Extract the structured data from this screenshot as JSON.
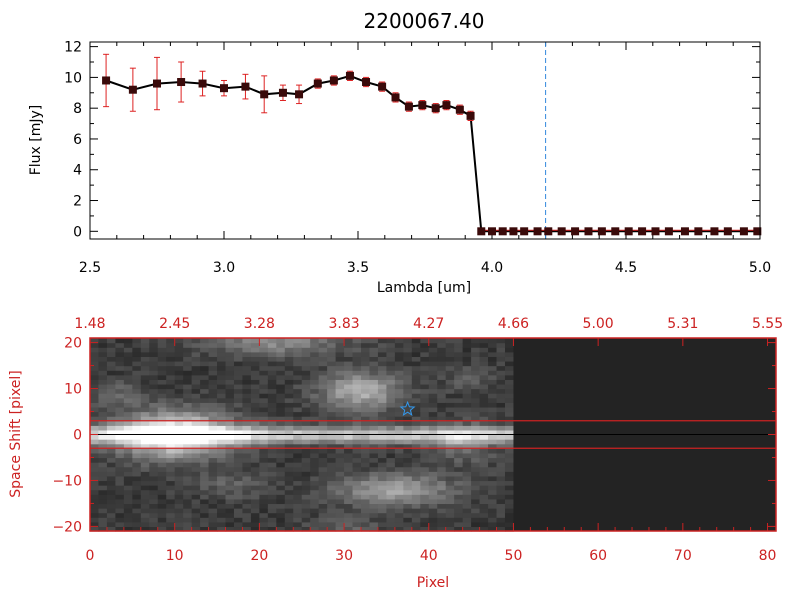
{
  "colors": {
    "axis_red": "#cc2222",
    "black": "#000000",
    "marker": "#3a0a0a",
    "error_bar": "#dd2222",
    "dashed_line": "#3388dd",
    "star": "#3399ee",
    "image_empty": "#232323"
  },
  "chart_data": [
    {
      "type": "line",
      "title": "2200067.40",
      "xlabel": "Lambda [um]",
      "ylabel": "Flux [mJy]",
      "xlim": [
        2.5,
        5.0
      ],
      "ylim": [
        -0.5,
        12.3
      ],
      "xticks": [
        2.5,
        3.0,
        3.5,
        4.0,
        4.5,
        5.0
      ],
      "xtick_labels": [
        "2.5",
        "3.0",
        "3.5",
        "4.0",
        "4.5",
        "5.0"
      ],
      "yticks": [
        0,
        2,
        4,
        6,
        8,
        10,
        12
      ],
      "ytick_labels": [
        "0",
        "2",
        "4",
        "6",
        "8",
        "10",
        "12"
      ],
      "vline_dashed": 4.2,
      "series": [
        {
          "name": "flux",
          "x": [
            2.56,
            2.66,
            2.75,
            2.84,
            2.92,
            3.0,
            3.08,
            3.15,
            3.22,
            3.28,
            3.35,
            3.41,
            3.47,
            3.53,
            3.59,
            3.64,
            3.69,
            3.74,
            3.79,
            3.83,
            3.88,
            3.92,
            3.96,
            4.0,
            4.04,
            4.08,
            4.12,
            4.17,
            4.21,
            4.26,
            4.31,
            4.36,
            4.41,
            4.46,
            4.51,
            4.56,
            4.61,
            4.66,
            4.72,
            4.77,
            4.83,
            4.88,
            4.94,
            4.99
          ],
          "y": [
            9.8,
            9.2,
            9.6,
            9.7,
            9.6,
            9.3,
            9.4,
            8.9,
            9.0,
            8.9,
            9.6,
            9.8,
            10.1,
            9.7,
            9.4,
            8.7,
            8.1,
            8.2,
            8.0,
            8.2,
            7.9,
            7.5,
            0,
            0,
            0,
            0,
            0,
            0,
            0,
            0,
            0,
            0,
            0,
            0,
            0,
            0,
            0,
            0,
            0,
            0,
            0,
            0,
            0,
            0
          ],
          "yerr": [
            1.7,
            1.4,
            1.7,
            1.3,
            0.8,
            0.5,
            0.8,
            1.2,
            0.5,
            0.6,
            0.3,
            0.3,
            0.3,
            0.3,
            0.3,
            0.3,
            0.3,
            0.3,
            0.3,
            0.3,
            0.3,
            0.3,
            0,
            0,
            0,
            0,
            0,
            0,
            0,
            0,
            0,
            0,
            0,
            0,
            0,
            0,
            0,
            0,
            0,
            0,
            0,
            0,
            0,
            0
          ]
        }
      ]
    },
    {
      "type": "heatmap",
      "xlabel": "Pixel",
      "ylabel": "Space Shift [pixel]",
      "xlim": [
        0,
        81
      ],
      "ylim": [
        -21,
        21
      ],
      "xticks": [
        0,
        10,
        20,
        30,
        40,
        50,
        60,
        70,
        80
      ],
      "xtick_labels": [
        "0",
        "10",
        "20",
        "30",
        "40",
        "50",
        "60",
        "70",
        "80"
      ],
      "yticks": [
        -20,
        -10,
        0,
        10,
        20
      ],
      "ytick_labels": [
        "−20",
        "−10",
        "0",
        "10",
        "20"
      ],
      "top_axis_values": [
        0,
        10,
        20,
        30,
        40,
        50,
        60,
        70,
        80
      ],
      "top_axis_labels": [
        "1.48",
        "2.45",
        "3.28",
        "3.83",
        "4.27",
        "4.66",
        "5.00",
        "5.31",
        "5.55"
      ],
      "data_extent_pixel": 50,
      "aperture_lines": [
        3,
        0,
        -3
      ],
      "star_marker": {
        "x": 37.5,
        "y": 5.5
      },
      "blobs": [
        {
          "x": 10,
          "y": 0,
          "sx": 5,
          "sy": 3.5,
          "amp": 0.75
        },
        {
          "x": 32,
          "y": 9.5,
          "sx": 3.5,
          "sy": 3,
          "amp": 0.45
        },
        {
          "x": 36,
          "y": -12,
          "sx": 5,
          "sy": 2.5,
          "amp": 0.4
        },
        {
          "x": 22,
          "y": 20,
          "sx": 6,
          "sy": 2,
          "amp": 0.3
        },
        {
          "x": 44,
          "y": -2,
          "sx": 3,
          "sy": 3,
          "amp": 0.2
        },
        {
          "x": 17,
          "y": -11,
          "sx": 3,
          "sy": 2,
          "amp": 0.15
        },
        {
          "x": 3,
          "y": 9,
          "sx": 2.5,
          "sy": 2,
          "amp": 0.15
        },
        {
          "x": 30,
          "y": -20,
          "sx": 3,
          "sy": 1.5,
          "amp": 0.15
        },
        {
          "x": 45,
          "y": 12,
          "sx": 2,
          "sy": 2,
          "amp": 0.12
        }
      ],
      "trace": {
        "y": 0,
        "sy": 1.3,
        "amp": 0.55
      }
    }
  ]
}
